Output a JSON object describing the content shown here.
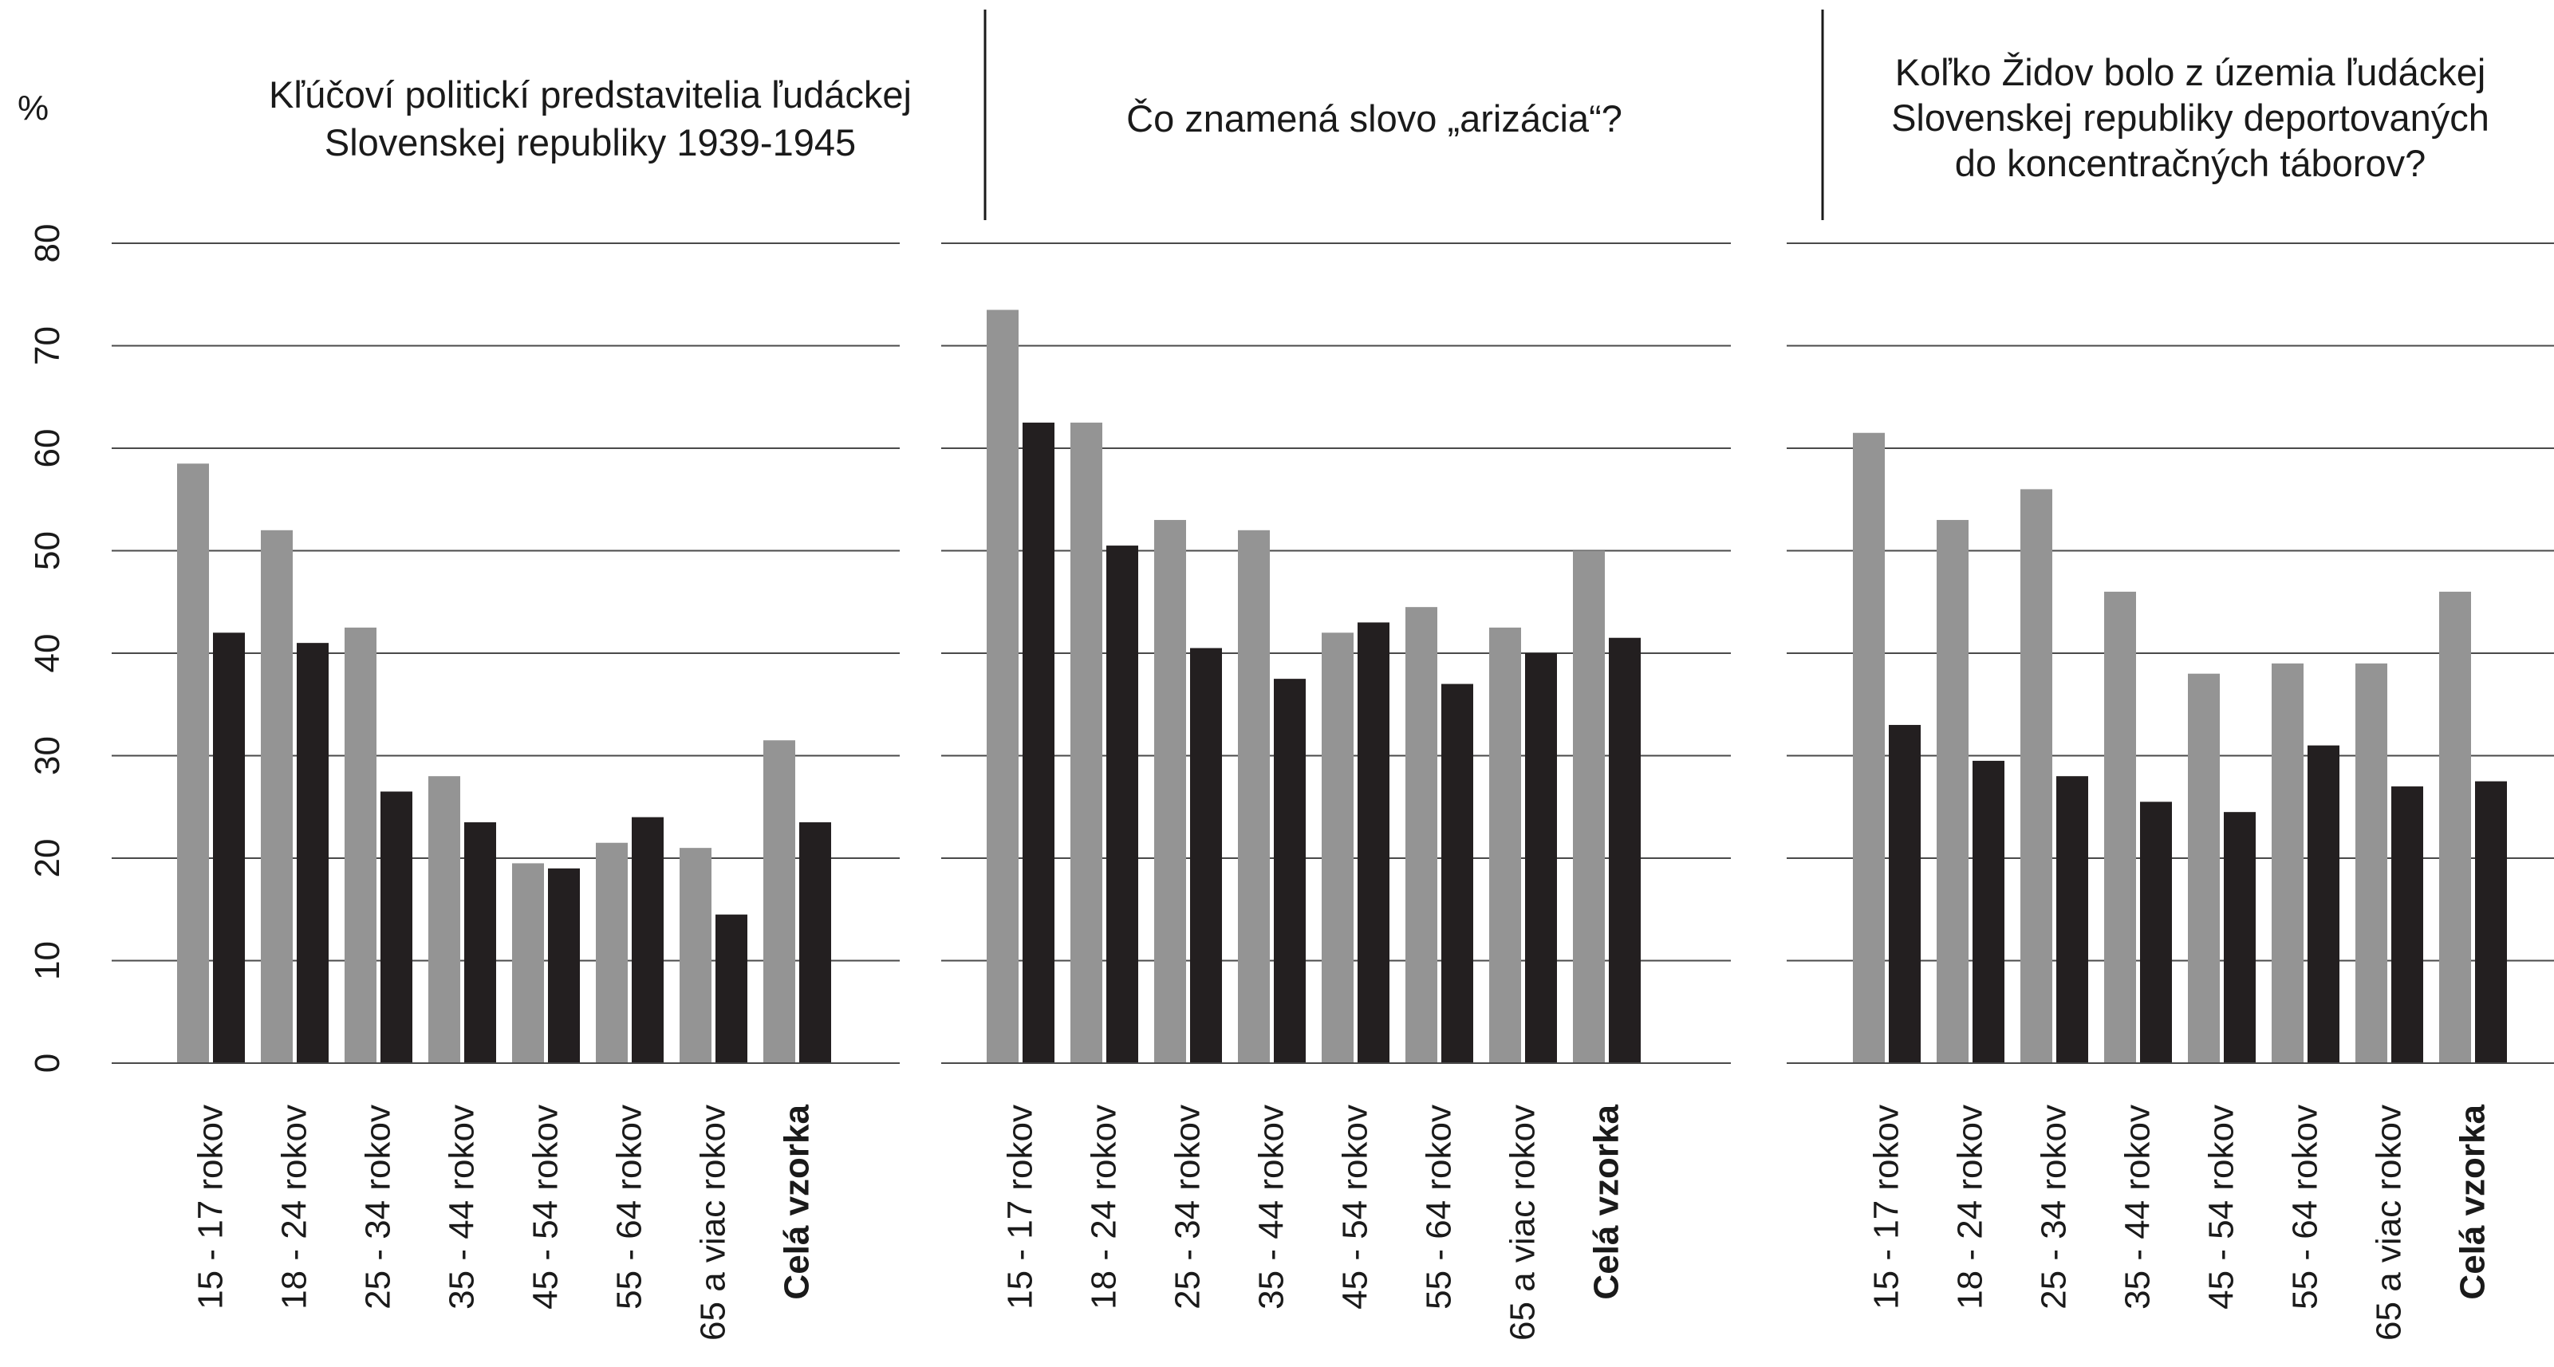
{
  "unit_label": "%",
  "colors": {
    "series_1": "#949494",
    "series_2": "#231f20",
    "gridline": "#4a4a4a",
    "divider": "#1a1a1a"
  },
  "chart_data": [
    {
      "type": "bar",
      "title_lines": [
        "Kľúčoví politickí predstavitelia ľudáckej",
        "Slovenskej republiky 1939-1945"
      ],
      "categories": [
        "15 - 17 rokov",
        "18 - 24 rokov",
        "25 - 34 rokov",
        "35 - 44 rokov",
        "45 - 54 rokov",
        "55 - 64 rokov",
        "65 a viac rokov",
        "Celá vzorka"
      ],
      "series": [
        {
          "values": [
            58.5,
            52,
            42.5,
            28,
            19.5,
            21.5,
            21,
            31.5
          ]
        },
        {
          "values": [
            42,
            41,
            26.5,
            23.5,
            19,
            24,
            14.5,
            23.5
          ]
        }
      ],
      "yticks": [
        0,
        10,
        20,
        30,
        40,
        50,
        60,
        70,
        80
      ],
      "ylim": [
        0,
        78
      ],
      "grid": true
    },
    {
      "type": "bar",
      "title_lines": [
        "Čo znamená slovo „arizácia“?"
      ],
      "categories": [
        "15 - 17 rokov",
        "18 - 24 rokov",
        "25 - 34 rokov",
        "35 - 44 rokov",
        "45 - 54 rokov",
        "55 - 64 rokov",
        "65 a viac rokov",
        "Celá vzorka"
      ],
      "series": [
        {
          "values": [
            73.5,
            62.5,
            53,
            52,
            42,
            44.5,
            42.5,
            50
          ]
        },
        {
          "values": [
            62.5,
            50.5,
            40.5,
            37.5,
            43,
            37,
            40,
            41.5
          ]
        }
      ],
      "yticks": [
        0,
        10,
        20,
        30,
        40,
        50,
        60,
        70,
        80
      ],
      "ylim": [
        0,
        78
      ],
      "grid": true
    },
    {
      "type": "bar",
      "title_lines": [
        "Koľko Židov bolo z územia ľudáckej",
        "Slovenskej republiky deportovaných",
        "do koncentračných táborov?"
      ],
      "categories": [
        "15 - 17 rokov",
        "18 - 24 rokov",
        "25 - 34 rokov",
        "35 - 44 rokov",
        "45 - 54 rokov",
        "55 - 64 rokov",
        "65 a viac rokov",
        "Celá vzorka"
      ],
      "series": [
        {
          "values": [
            61.5,
            53,
            56,
            46,
            38,
            39,
            39,
            46
          ]
        },
        {
          "values": [
            33,
            29.5,
            28,
            25.5,
            24.5,
            31,
            27,
            27.5
          ]
        }
      ],
      "yticks": [
        0,
        10,
        20,
        30,
        40,
        50,
        60,
        70,
        80
      ],
      "ylim": [
        0,
        78
      ],
      "grid": true
    }
  ]
}
